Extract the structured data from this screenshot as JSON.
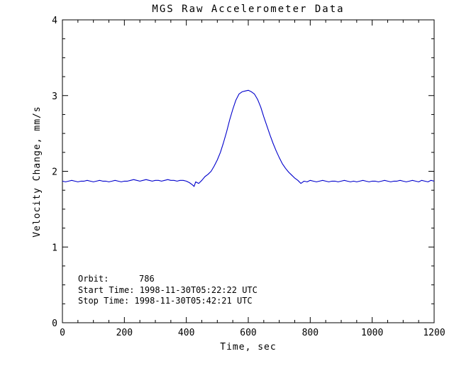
{
  "page": {
    "background": "#ffffff"
  },
  "chart_data": {
    "type": "line",
    "title": "MGS Raw Accelerometer Data",
    "xlabel": "Time, sec",
    "ylabel": "Velocity Change, mm/s",
    "xlim": [
      0,
      1200
    ],
    "ylim": [
      0,
      4
    ],
    "xticks": [
      0,
      200,
      400,
      600,
      800,
      1000,
      1200
    ],
    "yticks": [
      0,
      1,
      2,
      3,
      4
    ],
    "x_minor_step": 50,
    "y_minor_step": 0.25,
    "grid": false,
    "legend": false,
    "line_color": "#0000cc",
    "annotations": {
      "orbit_label": "Orbit:",
      "orbit_value": "786",
      "start_time": "Start Time: 1998-11-30T05:22:22 UTC",
      "stop_time": "Stop Time: 1998-11-30T05:42:21 UTC"
    },
    "series": [
      {
        "name": "velocity_change",
        "points": [
          [
            0,
            1.87
          ],
          [
            10,
            1.86
          ],
          [
            20,
            1.87
          ],
          [
            30,
            1.88
          ],
          [
            40,
            1.87
          ],
          [
            50,
            1.86
          ],
          [
            60,
            1.87
          ],
          [
            70,
            1.87
          ],
          [
            80,
            1.88
          ],
          [
            90,
            1.87
          ],
          [
            100,
            1.86
          ],
          [
            110,
            1.87
          ],
          [
            120,
            1.88
          ],
          [
            130,
            1.87
          ],
          [
            140,
            1.87
          ],
          [
            150,
            1.86
          ],
          [
            160,
            1.87
          ],
          [
            170,
            1.88
          ],
          [
            180,
            1.87
          ],
          [
            190,
            1.86
          ],
          [
            200,
            1.87
          ],
          [
            210,
            1.87
          ],
          [
            220,
            1.88
          ],
          [
            230,
            1.89
          ],
          [
            240,
            1.88
          ],
          [
            250,
            1.87
          ],
          [
            260,
            1.88
          ],
          [
            270,
            1.89
          ],
          [
            280,
            1.88
          ],
          [
            290,
            1.87
          ],
          [
            300,
            1.88
          ],
          [
            310,
            1.88
          ],
          [
            320,
            1.87
          ],
          [
            330,
            1.88
          ],
          [
            340,
            1.89
          ],
          [
            350,
            1.88
          ],
          [
            360,
            1.88
          ],
          [
            370,
            1.87
          ],
          [
            380,
            1.88
          ],
          [
            390,
            1.88
          ],
          [
            400,
            1.87
          ],
          [
            410,
            1.85
          ],
          [
            420,
            1.82
          ],
          [
            425,
            1.8
          ],
          [
            430,
            1.86
          ],
          [
            440,
            1.84
          ],
          [
            450,
            1.88
          ],
          [
            460,
            1.93
          ],
          [
            470,
            1.96
          ],
          [
            480,
            2.0
          ],
          [
            490,
            2.07
          ],
          [
            500,
            2.15
          ],
          [
            510,
            2.25
          ],
          [
            520,
            2.38
          ],
          [
            530,
            2.52
          ],
          [
            540,
            2.68
          ],
          [
            550,
            2.82
          ],
          [
            560,
            2.94
          ],
          [
            570,
            3.02
          ],
          [
            580,
            3.05
          ],
          [
            590,
            3.06
          ],
          [
            600,
            3.07
          ],
          [
            610,
            3.05
          ],
          [
            620,
            3.02
          ],
          [
            630,
            2.95
          ],
          [
            640,
            2.85
          ],
          [
            650,
            2.72
          ],
          [
            660,
            2.6
          ],
          [
            670,
            2.48
          ],
          [
            680,
            2.37
          ],
          [
            690,
            2.27
          ],
          [
            700,
            2.18
          ],
          [
            710,
            2.1
          ],
          [
            720,
            2.04
          ],
          [
            730,
            1.99
          ],
          [
            740,
            1.95
          ],
          [
            750,
            1.91
          ],
          [
            760,
            1.88
          ],
          [
            770,
            1.84
          ],
          [
            780,
            1.87
          ],
          [
            790,
            1.86
          ],
          [
            800,
            1.88
          ],
          [
            810,
            1.87
          ],
          [
            820,
            1.86
          ],
          [
            830,
            1.87
          ],
          [
            840,
            1.88
          ],
          [
            850,
            1.87
          ],
          [
            860,
            1.86
          ],
          [
            870,
            1.87
          ],
          [
            880,
            1.87
          ],
          [
            890,
            1.86
          ],
          [
            900,
            1.87
          ],
          [
            910,
            1.88
          ],
          [
            920,
            1.87
          ],
          [
            930,
            1.86
          ],
          [
            940,
            1.87
          ],
          [
            950,
            1.86
          ],
          [
            960,
            1.87
          ],
          [
            970,
            1.88
          ],
          [
            980,
            1.87
          ],
          [
            990,
            1.86
          ],
          [
            1000,
            1.87
          ],
          [
            1010,
            1.87
          ],
          [
            1020,
            1.86
          ],
          [
            1030,
            1.87
          ],
          [
            1040,
            1.88
          ],
          [
            1050,
            1.87
          ],
          [
            1060,
            1.86
          ],
          [
            1070,
            1.87
          ],
          [
            1080,
            1.87
          ],
          [
            1090,
            1.88
          ],
          [
            1100,
            1.87
          ],
          [
            1110,
            1.86
          ],
          [
            1120,
            1.87
          ],
          [
            1130,
            1.88
          ],
          [
            1140,
            1.87
          ],
          [
            1150,
            1.86
          ],
          [
            1160,
            1.88
          ],
          [
            1170,
            1.87
          ],
          [
            1180,
            1.86
          ],
          [
            1190,
            1.88
          ],
          [
            1200,
            1.87
          ]
        ]
      }
    ]
  }
}
